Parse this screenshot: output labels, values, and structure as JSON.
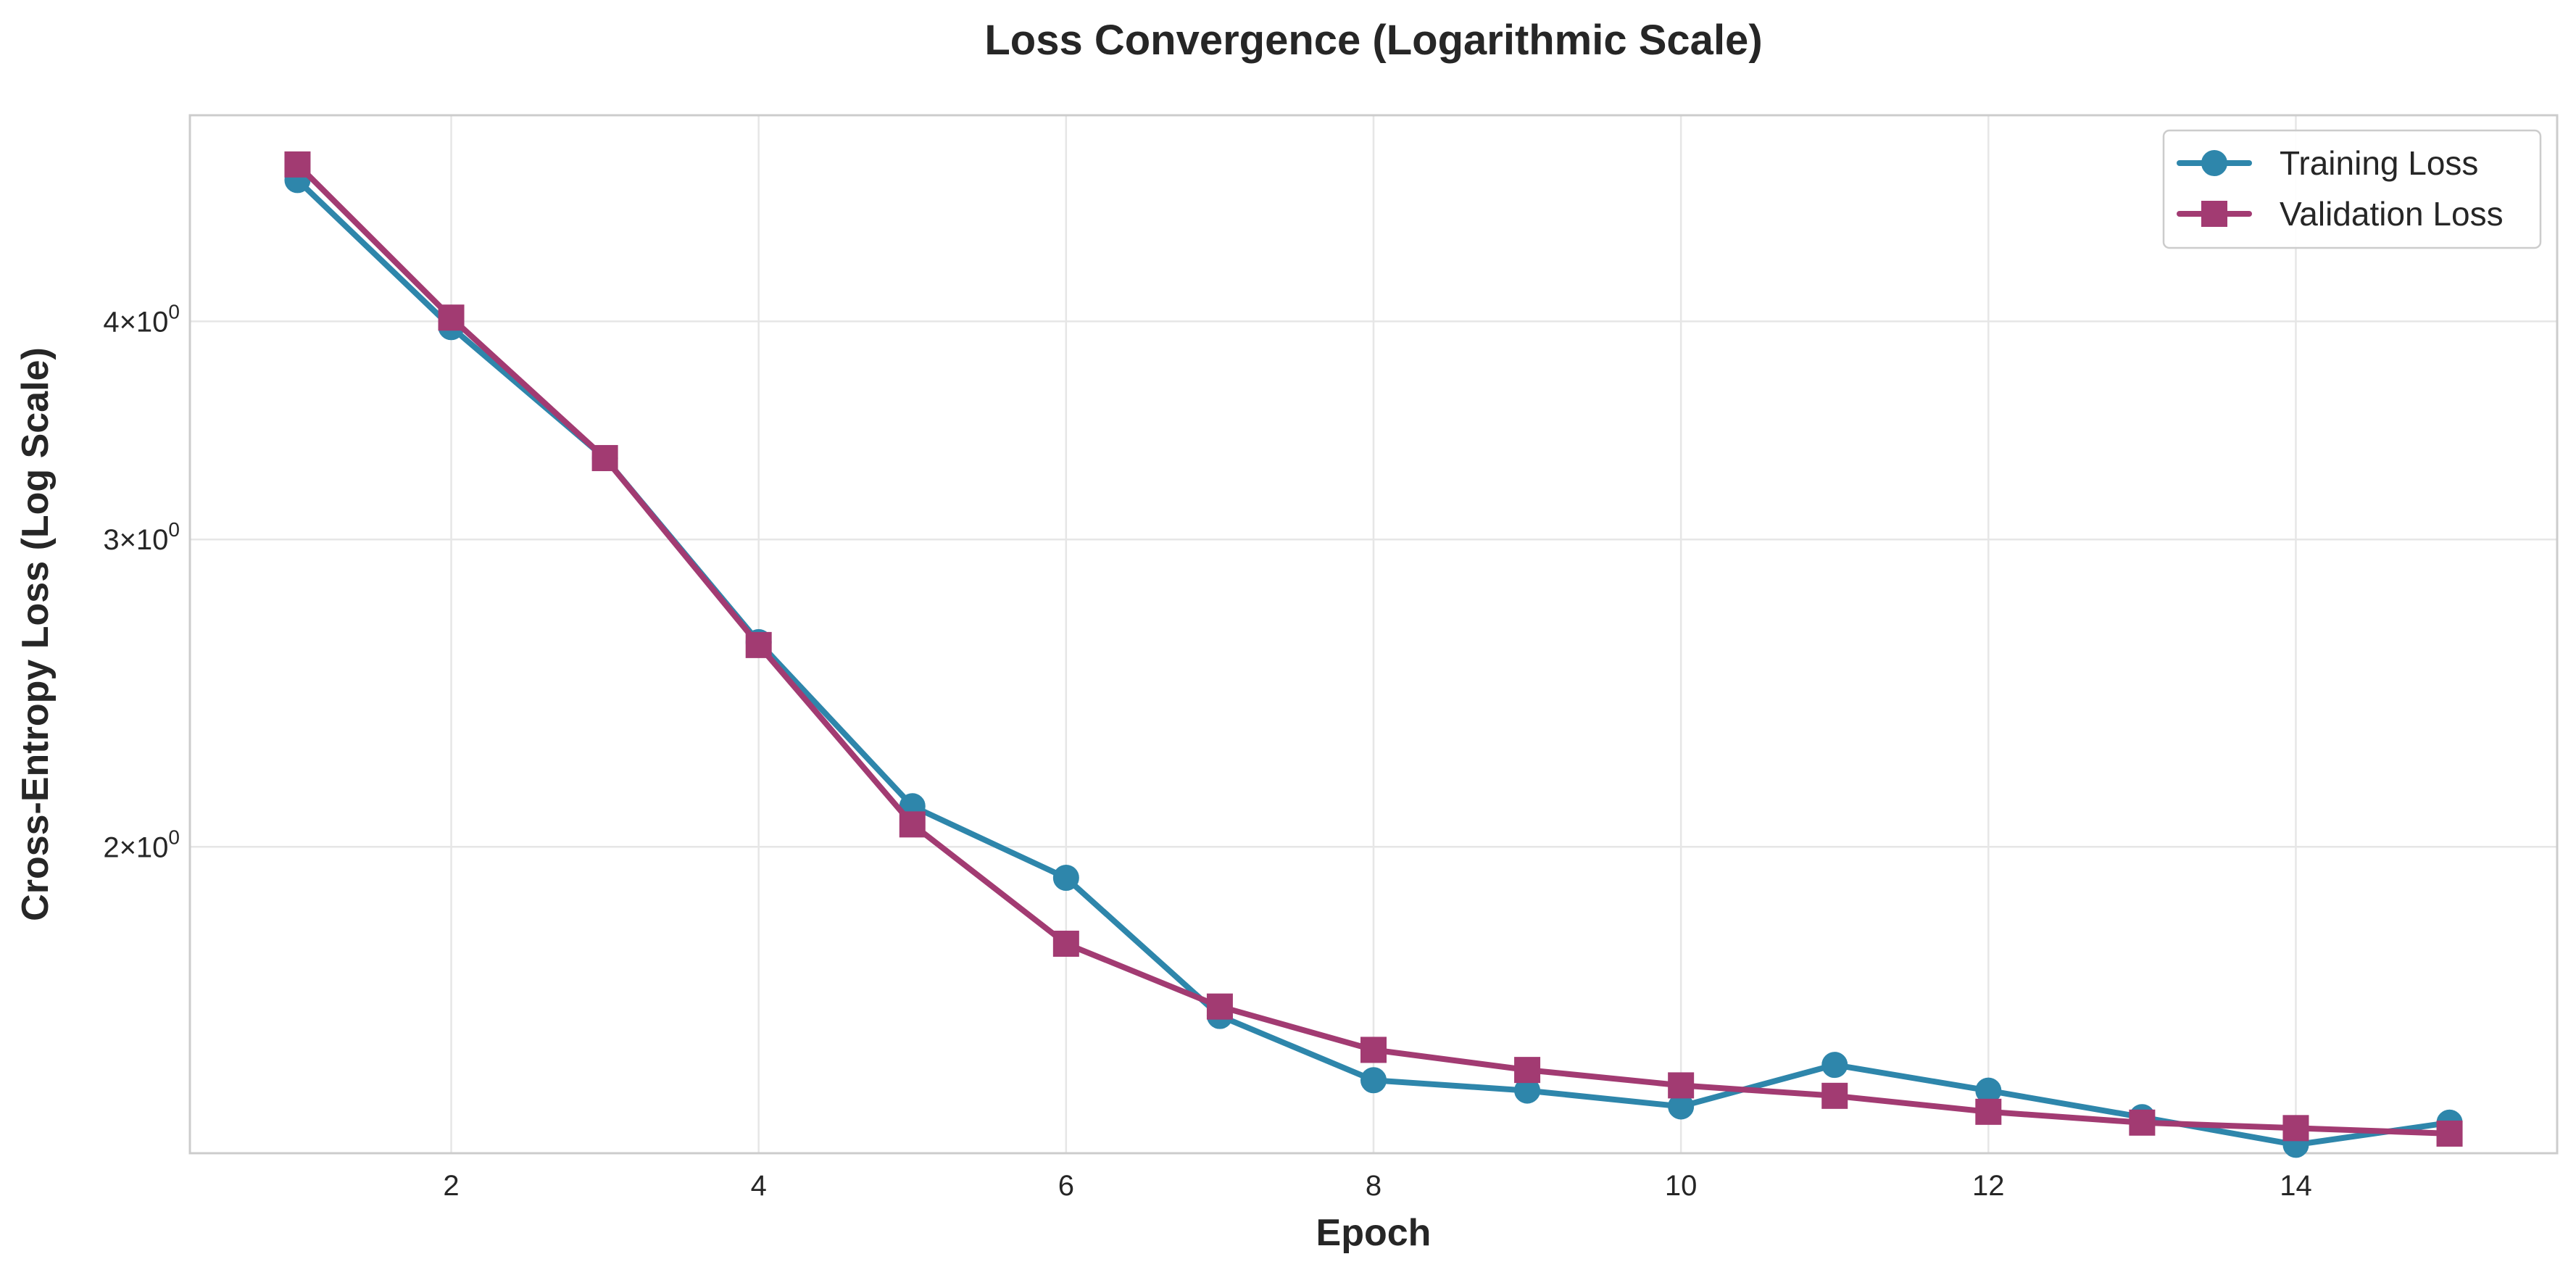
{
  "chart_data": {
    "type": "line",
    "title": "Loss Convergence (Logarithmic Scale)",
    "xlabel": "Epoch",
    "ylabel": "Cross-Entropy Loss (Log Scale)",
    "y_scale": "log",
    "xlim": [
      0.3,
      15.7
    ],
    "ylim": [
      1.335,
      5.25
    ],
    "x_ticks": [
      2,
      4,
      6,
      8,
      10,
      12,
      14
    ],
    "y_ticks": [
      {
        "value": 2,
        "mantissa": "2",
        "base": "10",
        "exponent": "0"
      },
      {
        "value": 3,
        "mantissa": "3",
        "base": "10",
        "exponent": "0"
      },
      {
        "value": 4,
        "mantissa": "4",
        "base": "10",
        "exponent": "0"
      }
    ],
    "grid": true,
    "legend_position": "top-right",
    "x": [
      1,
      2,
      3,
      4,
      5,
      6,
      7,
      8,
      9,
      10,
      11,
      12,
      13,
      14,
      15
    ],
    "series": [
      {
        "name": "Training Loss",
        "color": "#2e86ab",
        "marker": "circle",
        "values": [
          4.82,
          3.97,
          3.34,
          2.62,
          2.11,
          1.92,
          1.6,
          1.47,
          1.45,
          1.42,
          1.5,
          1.45,
          1.4,
          1.35,
          1.39
        ]
      },
      {
        "name": "Validation Loss",
        "color": "#a23b72",
        "marker": "square",
        "values": [
          4.92,
          4.02,
          3.34,
          2.61,
          2.06,
          1.76,
          1.62,
          1.53,
          1.49,
          1.46,
          1.44,
          1.41,
          1.39,
          1.38,
          1.37
        ]
      }
    ]
  }
}
